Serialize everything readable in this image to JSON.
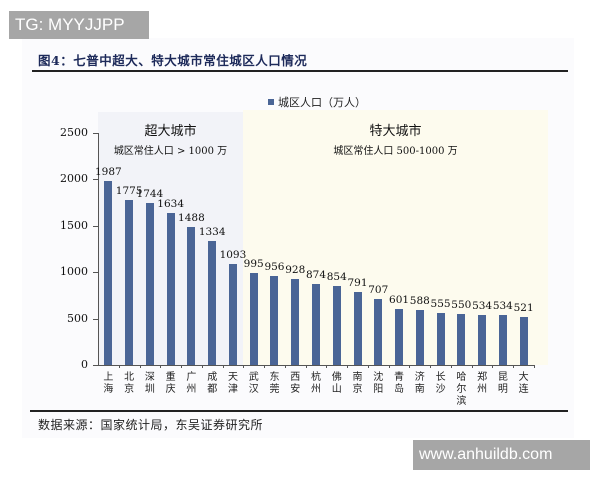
{
  "watermarks": {
    "top_left": "TG: MYYJJPP",
    "bottom_right": "www.anhuildb.com"
  },
  "figure": {
    "title": "图4：七普中超大、特大城市常住城区人口情况",
    "source": "数据来源：国家统计局，东吴证券研究所"
  },
  "legend": {
    "label": "城区人口（万人）",
    "color": "#4a6596"
  },
  "regions": {
    "super": {
      "title": "超大城市",
      "subtitle": "城区常住人口 > 1000 万",
      "color": "#f2f3f8"
    },
    "special": {
      "title": "特大城市",
      "subtitle": "城区常住人口 500-1000 万",
      "color": "#fdfbee"
    }
  },
  "chart_data": {
    "type": "bar",
    "title": "图4：七普中超大、特大城市常住城区人口情况",
    "xlabel": "",
    "ylabel": "",
    "legend": [
      "城区人口（万人）"
    ],
    "legend_position": "top",
    "grid": false,
    "ylim": [
      0,
      2500
    ],
    "yticks": [
      0,
      500,
      1000,
      1500,
      2000,
      2500
    ],
    "categories": [
      "上海",
      "北京",
      "深圳",
      "重庆",
      "广州",
      "成都",
      "天津",
      "武汉",
      "东莞",
      "西安",
      "杭州",
      "佛山",
      "南京",
      "沈阳",
      "青岛",
      "济南",
      "长沙",
      "哈尔滨",
      "郑州",
      "昆明",
      "大连"
    ],
    "values": [
      1987,
      1775,
      1744,
      1634,
      1488,
      1334,
      1093,
      995,
      956,
      928,
      874,
      854,
      791,
      707,
      601,
      588,
      555,
      550,
      534,
      534,
      521
    ],
    "series": [
      {
        "name": "城区人口（万人）",
        "values": [
          1987,
          1775,
          1744,
          1634,
          1488,
          1334,
          1093,
          995,
          956,
          928,
          874,
          854,
          791,
          707,
          601,
          588,
          555,
          550,
          534,
          534,
          521
        ]
      }
    ],
    "annotations": [
      {
        "text": "超大城市",
        "sub": "城区常住人口 > 1000 万",
        "span": [
          "上海",
          "天津"
        ]
      },
      {
        "text": "特大城市",
        "sub": "城区常住人口 500-1000 万",
        "span": [
          "武汉",
          "大连"
        ]
      }
    ]
  }
}
